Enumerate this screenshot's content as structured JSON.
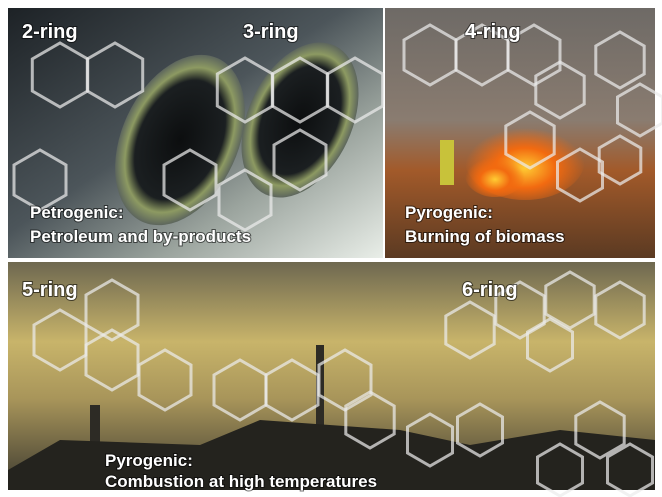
{
  "panels": [
    {
      "labels": [
        "2-ring",
        "3-ring"
      ],
      "caption": [
        "Petrogenic:",
        "Petroleum and by-products"
      ]
    },
    {
      "labels": [
        "4-ring"
      ],
      "caption": [
        "Pyrogenic:",
        "Burning of biomass"
      ]
    },
    {
      "labels": [
        "5-ring",
        "6-ring"
      ],
      "caption": [
        "Pyrogenic:",
        "Combustion at high temperatures"
      ]
    }
  ]
}
